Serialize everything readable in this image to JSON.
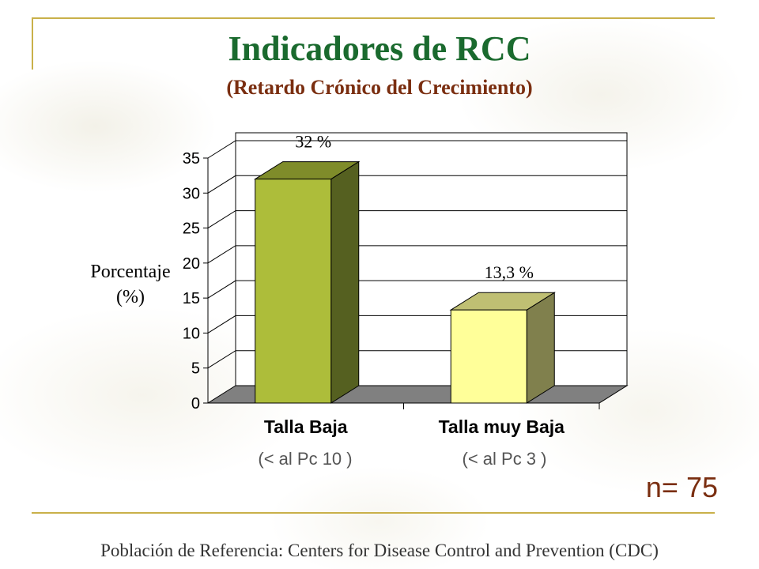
{
  "title": "Indicadores de RCC",
  "subtitle": "(Retardo Crónico del Crecimiento)",
  "ylabel_line1": "Porcentaje",
  "ylabel_line2": "(%)",
  "sub_labels": [
    "(< al Pc 10 )",
    "(< al Pc 3 )"
  ],
  "n_label": "n= 75",
  "footer": "Población de Referencia:  Centers for Disease Control and Prevention (CDC)",
  "colors": {
    "title": "#1a6a2e",
    "subtitle": "#7a2e10",
    "rule": "#c9b04a"
  },
  "chart_data": {
    "type": "bar",
    "style": "3d",
    "categories": [
      "Talla Baja",
      "Talla muy Baja"
    ],
    "values": [
      32,
      13.3
    ],
    "data_labels": [
      "32 %",
      "13,3 %"
    ],
    "ylim": [
      0,
      35
    ],
    "yticks": [
      0,
      5,
      10,
      15,
      20,
      25,
      30,
      35
    ],
    "grid": true,
    "bar_colors": [
      {
        "front": "#adbd3a",
        "side": "#556020",
        "top": "#7f8c2a"
      },
      {
        "front": "#ffff99",
        "side": "#80804d",
        "top": "#bfbf73"
      }
    ]
  }
}
